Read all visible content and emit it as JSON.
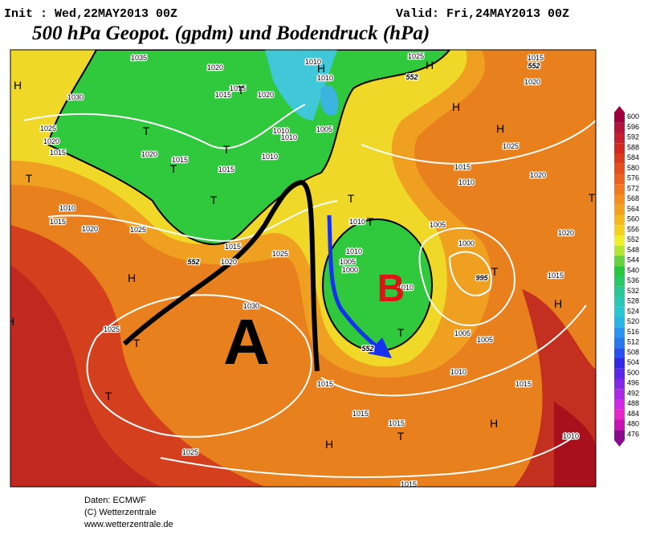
{
  "header": {
    "init": "Init : Wed,22MAY2013 00Z",
    "valid": "Valid: Fri,24MAY2013 00Z",
    "title": "500 hPa Geopot. (gpdm) und Bodendruck (hPa)"
  },
  "map": {
    "labels": [
      "1035",
      "1020",
      "1015",
      "1015",
      "1030",
      "1025",
      "1020",
      "1015",
      "1020",
      "1015",
      "1015",
      "1020",
      "1010",
      "1010",
      "1010",
      "1005",
      "1010",
      "1010",
      "1025",
      "1015",
      "1020",
      "1025",
      "1015",
      "1010",
      "1020",
      "1010",
      "1015",
      "1020",
      "1025",
      "1015",
      "1020",
      "1025",
      "1010",
      "1005",
      "1000",
      "1010",
      "1005",
      "1000",
      "995",
      "1015",
      "1020",
      "1030",
      "1025",
      "1010",
      "1005",
      "1005",
      "1010",
      "1015",
      "1015",
      "1025",
      "1015",
      "1015",
      "1015",
      "1010",
      "552",
      "552",
      "552",
      "552",
      "H",
      "T",
      "H",
      "H",
      "H",
      "H",
      "T",
      "T",
      "T",
      "T",
      "T",
      "T",
      "T",
      "T",
      "H",
      "T",
      "T",
      "T",
      "H",
      "T",
      "H",
      "T",
      "H",
      "H"
    ],
    "annotations": [
      "A",
      "B"
    ]
  },
  "colorbar": {
    "labels": [
      600,
      596,
      592,
      588,
      584,
      580,
      576,
      572,
      568,
      564,
      560,
      556,
      552,
      548,
      544,
      540,
      536,
      532,
      528,
      524,
      520,
      516,
      512,
      508,
      504,
      500,
      496,
      492,
      488,
      484,
      480,
      476
    ]
  },
  "footer": {
    "source": "Daten: ECMWF",
    "copyright": "(C) Wetterzentrale",
    "url": "www.wetterzentrale.de"
  }
}
